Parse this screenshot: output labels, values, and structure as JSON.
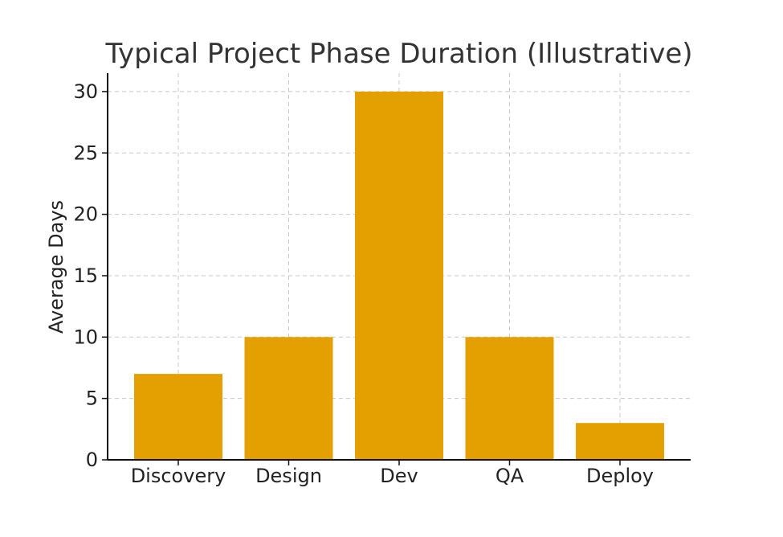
{
  "chart_data": {
    "type": "bar",
    "title": "Typical Project Phase Duration (Illustrative)",
    "xlabel": "",
    "ylabel": "Average Days",
    "categories": [
      "Discovery",
      "Design",
      "Dev",
      "QA",
      "Deploy"
    ],
    "values": [
      7,
      10,
      30,
      10,
      3
    ],
    "ylim": [
      0,
      31.5
    ],
    "yticks": [
      0,
      5,
      10,
      15,
      20,
      25,
      30
    ],
    "grid": true,
    "bar_color": "#E3A000",
    "grid_color": "#c8c8c8"
  }
}
